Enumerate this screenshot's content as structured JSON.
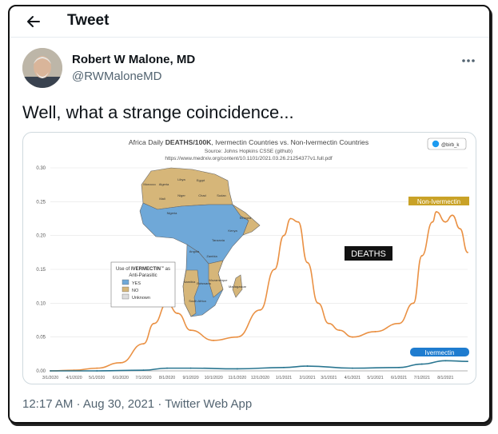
{
  "header": {
    "title": "Tweet",
    "back_icon": "arrow-left-icon"
  },
  "author": {
    "name": "Robert W Malone, MD",
    "handle": "@RWMaloneMD",
    "more_icon": "more-horizontal-icon"
  },
  "tweet": {
    "text": "Well, what a strange coincidence..."
  },
  "meta": {
    "time": "12:17 AM",
    "sep1": " · ",
    "date": "Aug 30, 2021",
    "sep2": " · ",
    "source": "Twitter Web App"
  },
  "colors": {
    "non_ivermectin": "#e98b3a",
    "non_ivermectin_label": "#c9a227",
    "ivermectin": "#1f6f8b",
    "ivermectin_label": "#1f7ccf",
    "africa_yes": "#6fa8d8",
    "africa_no": "#d6b679"
  },
  "chart_data": {
    "type": "line",
    "title_prefix": "Africa Daily ",
    "title_bold": "DEATHS/100K",
    "title_suffix": ", Ivermectin Countries vs. Non-Ivermectin Countries",
    "subtitle": "Source: Johns Hopkins CSSE (github)",
    "subtitle2": "https://www.medrxiv.org/content/10.1101/2021.03.26.21254377v1.full.pdf",
    "credit": "@birb_k",
    "annotation": "DEATHS",
    "ylim": [
      0,
      0.3
    ],
    "yticks": [
      "0.30",
      "0.25",
      "0.20",
      "0.15",
      "0.10",
      "0.05",
      "0.00"
    ],
    "x_ticks": [
      "3/1/2020",
      "4/1/2020",
      "5/1/2020",
      "6/1/2020",
      "7/1/2020",
      "8/1/2020",
      "9/1/2020",
      "10/1/2020",
      "11/1/2020",
      "12/1/2020",
      "1/1/2021",
      "2/1/2021",
      "3/1/2021",
      "4/1/2021",
      "5/1/2021",
      "6/1/2021",
      "7/1/2021",
      "8/1/2021"
    ],
    "legend": {
      "title_prefix": "Use of ",
      "title_bold": "IVERMECTIN",
      "title_sup": "™",
      "title_suffix": " as",
      "title_line2": "Anti-Parasitic",
      "items": [
        "YES",
        "NO",
        "Unknown"
      ]
    },
    "series": [
      {
        "name": "Non-Ivermectin",
        "x": [
          "3/1/2020",
          "4/1/2020",
          "5/1/2020",
          "6/1/2020",
          "7/1/2020",
          "7/15/2020",
          "8/1/2020",
          "8/15/2020",
          "9/1/2020",
          "10/1/2020",
          "11/1/2020",
          "12/1/2020",
          "12/20/2020",
          "1/1/2021",
          "1/10/2021",
          "1/20/2021",
          "2/1/2021",
          "2/15/2021",
          "3/1/2021",
          "3/15/2021",
          "4/1/2021",
          "5/1/2021",
          "6/1/2021",
          "6/20/2021",
          "7/1/2021",
          "7/15/2021",
          "7/20/2021",
          "8/1/2021",
          "8/10/2021",
          "8/20/2021",
          "8/30/2021"
        ],
        "values": [
          0.0,
          0.001,
          0.004,
          0.012,
          0.04,
          0.07,
          0.1,
          0.085,
          0.06,
          0.045,
          0.05,
          0.09,
          0.15,
          0.2,
          0.225,
          0.22,
          0.16,
          0.1,
          0.07,
          0.06,
          0.05,
          0.058,
          0.07,
          0.1,
          0.17,
          0.22,
          0.235,
          0.22,
          0.23,
          0.21,
          0.175
        ]
      },
      {
        "name": "Ivermectin",
        "x": [
          "3/1/2020",
          "5/1/2020",
          "7/1/2020",
          "8/1/2020",
          "9/1/2020",
          "11/1/2020",
          "1/1/2021",
          "2/1/2021",
          "4/1/2021",
          "6/1/2021",
          "7/1/2021",
          "8/1/2021",
          "8/30/2021"
        ],
        "values": [
          0.0,
          0.0,
          0.001,
          0.004,
          0.004,
          0.003,
          0.005,
          0.007,
          0.004,
          0.005,
          0.01,
          0.015,
          0.014
        ]
      }
    ],
    "series_labels": [
      "Non-Ivermectin",
      "Ivermectin"
    ],
    "map_labels": [
      "Egypt",
      "Libya",
      "Algeria",
      "Morocco",
      "Mali",
      "Niger",
      "Chad",
      "Sudan",
      "Nigeria",
      "Ethiopia",
      "Kenya",
      "Tanzania",
      "Angola",
      "Zambia",
      "Namibia",
      "Botswana",
      "Mozambique",
      "Madagascar",
      "South Africa"
    ]
  }
}
